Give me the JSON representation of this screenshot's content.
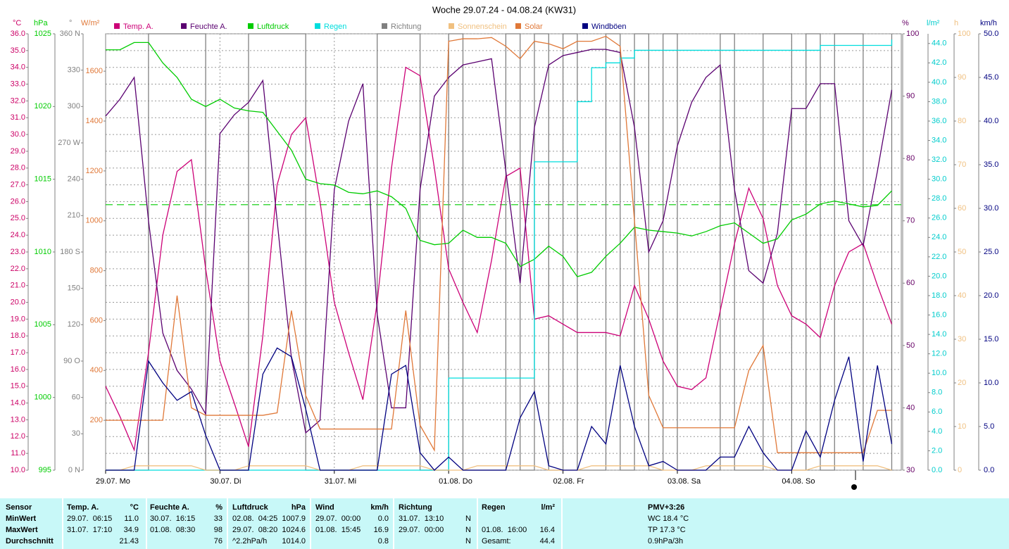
{
  "chart_data": {
    "type": "line",
    "title": "Woche 29.07.24 - 04.08.24 (KW31)",
    "xlim": [
      0,
      167
    ],
    "xticks": [
      {
        "value": 0,
        "label": "29.07. Mo"
      },
      {
        "value": 24,
        "label": "30.07. Di"
      },
      {
        "value": 48,
        "label": "31.07. Mi"
      },
      {
        "value": 72,
        "label": "01.08. Do"
      },
      {
        "value": 96,
        "label": "02.08. Fr"
      },
      {
        "value": 120,
        "label": "03.08. Sa"
      },
      {
        "value": 144,
        "label": "04.08. So"
      }
    ],
    "grid": true,
    "axes": {
      "temp": {
        "unit": "°C",
        "color": "#cc0066",
        "lim": [
          10,
          36
        ],
        "ticks": [
          {
            "value": 10,
            "label": "10.0"
          },
          {
            "value": 11,
            "label": "11.0"
          },
          {
            "value": 12,
            "label": "12.0"
          },
          {
            "value": 13,
            "label": "13.0"
          },
          {
            "value": 14,
            "label": "14.0"
          },
          {
            "value": 15,
            "label": "15.0"
          },
          {
            "value": 16,
            "label": "16.0"
          },
          {
            "value": 17,
            "label": "17.0"
          },
          {
            "value": 18,
            "label": "18.0"
          },
          {
            "value": 19,
            "label": "19.0"
          },
          {
            "value": 20,
            "label": "20.0"
          },
          {
            "value": 21,
            "label": "21.0"
          },
          {
            "value": 22,
            "label": "22.0"
          },
          {
            "value": 23,
            "label": "23.0"
          },
          {
            "value": 24,
            "label": "24.0"
          },
          {
            "value": 25,
            "label": "25.0"
          },
          {
            "value": 26,
            "label": "26.0"
          },
          {
            "value": 27,
            "label": "27.0"
          },
          {
            "value": 28,
            "label": "28.0"
          },
          {
            "value": 29,
            "label": "29.0"
          },
          {
            "value": 30,
            "label": "30.0"
          },
          {
            "value": 31,
            "label": "31.0"
          },
          {
            "value": 32,
            "label": "32.0"
          },
          {
            "value": 33,
            "label": "33.0"
          },
          {
            "value": 34,
            "label": "34.0"
          },
          {
            "value": 35,
            "label": "35.0"
          },
          {
            "value": 36,
            "label": "36.0"
          }
        ]
      },
      "pressure": {
        "unit": "hPa",
        "color": "#00cc00",
        "lim": [
          995,
          1025
        ],
        "ticks": [
          995,
          1000,
          1005,
          1010,
          1015,
          1020,
          1025
        ]
      },
      "direction": {
        "unit": "°",
        "color": "#808080",
        "lim": [
          0,
          360
        ],
        "ticks": [
          {
            "value": 0,
            "label": "0 N"
          },
          30,
          60,
          {
            "value": 90,
            "label": "90 O"
          },
          120,
          150,
          {
            "value": 180,
            "label": "180 S"
          },
          210,
          240,
          {
            "value": 270,
            "label": "270 W"
          },
          300,
          330,
          {
            "value": 360,
            "label": "360 N"
          }
        ]
      },
      "solar": {
        "unit": "W/m²",
        "color": "#e07838",
        "lim": [
          0,
          1750
        ],
        "ticks": [
          200,
          400,
          600,
          800,
          1000,
          1200,
          1400,
          1600
        ]
      },
      "humidity": {
        "unit": "%",
        "color": "#660066",
        "lim": [
          30,
          100
        ],
        "ticks": [
          30,
          40,
          50,
          60,
          70,
          80,
          90,
          100
        ]
      },
      "rain": {
        "unit": "l/m²",
        "color": "#00cccc",
        "lim": [
          0,
          45
        ],
        "ticks": [
          {
            "value": 0,
            "label": "0.0"
          },
          {
            "value": 2,
            "label": "2.0"
          },
          {
            "value": 4,
            "label": "4.0"
          },
          {
            "value": 6,
            "label": "6.0"
          },
          {
            "value": 8,
            "label": "8.0"
          },
          {
            "value": 10,
            "label": "10.0"
          },
          {
            "value": 12,
            "label": "12.0"
          },
          {
            "value": 14,
            "label": "14.0"
          },
          {
            "value": 16,
            "label": "16.0"
          },
          {
            "value": 18,
            "label": "18.0"
          },
          {
            "value": 20,
            "label": "20.0"
          },
          {
            "value": 22,
            "label": "22.0"
          },
          {
            "value": 24,
            "label": "24.0"
          },
          {
            "value": 26,
            "label": "26.0"
          },
          {
            "value": 28,
            "label": "28.0"
          },
          {
            "value": 30,
            "label": "30.0"
          },
          {
            "value": 32,
            "label": "32.0"
          },
          {
            "value": 34,
            "label": "34.0"
          },
          {
            "value": 36,
            "label": "36.0"
          },
          {
            "value": 38,
            "label": "38.0"
          },
          {
            "value": 40,
            "label": "40.0"
          },
          {
            "value": 42,
            "label": "42.0"
          },
          {
            "value": 44,
            "label": "44.0"
          }
        ]
      },
      "sunshine": {
        "unit": "h",
        "color": "#f0c080",
        "lim": [
          0,
          100
        ],
        "ticks": [
          0,
          10,
          20,
          30,
          40,
          50,
          60,
          70,
          80,
          90,
          100
        ]
      },
      "wind": {
        "unit": "km/h",
        "color": "#000080",
        "lim": [
          0,
          50
        ],
        "ticks": [
          {
            "value": 0,
            "label": "0.0"
          },
          {
            "value": 5,
            "label": "5.0"
          },
          {
            "value": 10,
            "label": "10.0"
          },
          {
            "value": 15,
            "label": "15.0"
          },
          {
            "value": 20,
            "label": "20.0"
          },
          {
            "value": 25,
            "label": "25.0"
          },
          {
            "value": 30,
            "label": "30.0"
          },
          {
            "value": 35,
            "label": "35.0"
          },
          {
            "value": 40,
            "label": "40.0"
          },
          {
            "value": 45,
            "label": "45.0"
          },
          {
            "value": 50,
            "label": "50.0"
          }
        ]
      }
    },
    "reference_line": {
      "value": 1013.25,
      "axis": "pressure"
    },
    "x": [
      0,
      3,
      6,
      9,
      12,
      15,
      18,
      21,
      24,
      27,
      30,
      33,
      36,
      39,
      42,
      45,
      48,
      51,
      54,
      57,
      60,
      63,
      66,
      69,
      72,
      75,
      78,
      81,
      84,
      87,
      90,
      93,
      96,
      99,
      102,
      105,
      108,
      111,
      114,
      117,
      120,
      123,
      126,
      129,
      132,
      135,
      138,
      141,
      144,
      147,
      150,
      153,
      156,
      159,
      162,
      165
    ],
    "series": [
      {
        "name": "Temp. A.",
        "color": "#cc0077",
        "axis": "temp",
        "values": [
          15,
          13.2,
          11.2,
          17,
          24,
          27.8,
          28.5,
          22,
          16.5,
          14,
          11.4,
          18,
          27,
          30,
          31,
          26,
          20,
          17,
          14.2,
          20,
          28,
          34,
          33.5,
          28,
          22,
          20,
          18.2,
          22.5,
          27.5,
          28,
          19,
          19.2,
          18.7,
          18.2,
          18.2,
          18.2,
          18,
          21,
          19,
          16.5,
          15,
          14.8,
          15.5,
          19.5,
          23.5,
          26.8,
          25,
          21,
          19.2,
          18.7,
          17.9,
          21,
          23,
          23.5,
          21,
          18.7
        ]
      },
      {
        "name": "Feuchte A.",
        "color": "#5a0070",
        "axis": "humidity",
        "values": [
          86.8,
          89.5,
          93,
          70,
          52,
          46,
          43,
          39,
          84,
          87,
          89,
          92.5,
          70,
          48,
          36,
          38,
          75,
          86,
          92,
          55,
          40,
          40,
          75,
          90,
          93,
          95,
          95.5,
          96,
          78,
          60,
          85,
          95,
          96.5,
          97,
          97.5,
          97.5,
          97,
          85,
          65,
          70,
          82,
          89,
          93,
          95,
          75,
          62,
          60,
          68,
          88,
          88,
          92,
          92,
          70,
          66,
          78,
          91
        ]
      },
      {
        "name": "Luftdruck",
        "color": "#00cc00",
        "axis": "pressure",
        "values": [
          1023.9,
          1023.9,
          1024.4,
          1024.4,
          1023,
          1022,
          1020.5,
          1020,
          1020.5,
          1019.9,
          1019.7,
          1019.6,
          1018.3,
          1017,
          1015,
          1014.7,
          1014.6,
          1014.1,
          1014,
          1014.2,
          1013.8,
          1013,
          1010.8,
          1010.5,
          1010.6,
          1011.5,
          1011,
          1011,
          1010.6,
          1009,
          1009.5,
          1010.4,
          1009.7,
          1008.3,
          1008.6,
          1009.7,
          1010.6,
          1011.7,
          1011.5,
          1011.4,
          1011.3,
          1011.1,
          1011.4,
          1011.8,
          1012,
          1011.3,
          1010.6,
          1010.9,
          1012.2,
          1012.6,
          1013.3,
          1013.5,
          1013.3,
          1013.1,
          1013.2,
          1014.2
        ]
      },
      {
        "name": "Regen",
        "color": "#00dddd",
        "axis": "rain",
        "draw": "step",
        "values": [
          0,
          0,
          0,
          0,
          0,
          0,
          0,
          0,
          0,
          0,
          0,
          0,
          0,
          0,
          0,
          0,
          0,
          0,
          0,
          0,
          0,
          0,
          0,
          0,
          9.5,
          9.5,
          9.5,
          9.5,
          9.5,
          9.5,
          31.8,
          31.8,
          31.8,
          38,
          41.5,
          42,
          42.5,
          43.3,
          43.3,
          43.3,
          43.3,
          43.3,
          43.3,
          43.3,
          43.3,
          43.3,
          43.3,
          43.3,
          43.3,
          43.3,
          43.8,
          43.8,
          43.8,
          43.8,
          43.8,
          44.4
        ]
      },
      {
        "name": "Richtung",
        "color": "#808080",
        "axis": "direction",
        "draw": "step",
        "values": [
          0,
          0,
          0,
          360,
          360,
          360,
          360,
          0,
          0,
          0,
          360,
          360,
          360,
          360,
          0,
          0,
          0,
          0,
          0,
          360,
          360,
          360,
          0,
          0,
          360,
          0,
          0,
          0,
          360,
          0,
          360,
          0,
          360,
          0,
          0,
          360,
          0,
          360,
          0,
          360,
          0,
          0,
          0,
          360,
          0,
          0,
          360,
          360,
          0,
          360,
          0,
          360,
          360,
          0,
          0,
          360
        ]
      },
      {
        "name": "Sonnenschein",
        "color": "#f0c080",
        "axis": "sunshine",
        "values": [
          0,
          0,
          1,
          1,
          1,
          1,
          1,
          0,
          0,
          0,
          1,
          1,
          1,
          1,
          1,
          0,
          0,
          0,
          1,
          1,
          1,
          1,
          1,
          0,
          0,
          0,
          1,
          1,
          1,
          1,
          1,
          0,
          0,
          0,
          1,
          1,
          1,
          1,
          1,
          0,
          0,
          0,
          1,
          1,
          1,
          1,
          1,
          0,
          0,
          0,
          1,
          1,
          1,
          1,
          1,
          0
        ]
      },
      {
        "name": "Solar",
        "color": "#e07838",
        "axis": "solar",
        "values": [
          200,
          200,
          200,
          200,
          200,
          700,
          250,
          220,
          220,
          220,
          220,
          220,
          230,
          640,
          300,
          165,
          165,
          165,
          165,
          165,
          165,
          640,
          180,
          80,
          1720,
          1730,
          1730,
          1735,
          1700,
          1650,
          1720,
          1710,
          1690,
          1720,
          1720,
          1740,
          1700,
          1000,
          300,
          170,
          170,
          170,
          170,
          170,
          170,
          400,
          500,
          70,
          70,
          70,
          70,
          70,
          70,
          70,
          240,
          240
        ]
      },
      {
        "name": "Windböen",
        "color": "#000080",
        "axis": "wind",
        "values": [
          0,
          0,
          0,
          12.5,
          10,
          8,
          9,
          4,
          0,
          0,
          0,
          11,
          14,
          13,
          7,
          0,
          0,
          0,
          0,
          0,
          11,
          12,
          2,
          0,
          1.5,
          0,
          0,
          0,
          0,
          6,
          9,
          0.5,
          0,
          0,
          5,
          3,
          12,
          5,
          0.5,
          1,
          0,
          0,
          0,
          1.5,
          1.5,
          5,
          2,
          0,
          0,
          4.5,
          1.5,
          8,
          13,
          1,
          12,
          3
        ]
      }
    ]
  },
  "stats": {
    "sensor_label": "Sensor",
    "row_labels": [
      "MinWert",
      "MaxWert",
      "Durchschnitt"
    ],
    "columns": [
      {
        "name": "Temp. A.",
        "unit": "°C",
        "cells": [
          {
            "time": "29.07.  06:15",
            "value": "11.0"
          },
          {
            "time": "31.07.  17:10",
            "value": "34.9"
          },
          {
            "value": "21.43"
          }
        ]
      },
      {
        "name": "Feuchte A.",
        "unit": "%",
        "cells": [
          {
            "time": "30.07.  16:15",
            "value": "33"
          },
          {
            "time": "01.08.  08:30",
            "value": "98"
          },
          {
            "value": "76"
          }
        ]
      },
      {
        "name": "Luftdruck",
        "unit": "hPa",
        "cells": [
          {
            "time": "02.08.  04:25",
            "value": "1007.9"
          },
          {
            "time": "29.07.  08:20",
            "value": "1024.6"
          },
          {
            "time": "^2.2hPa/h",
            "value": "1014.0"
          }
        ]
      },
      {
        "name": "Wind",
        "unit": "km/h",
        "cells": [
          {
            "time": "29.07.  00:00",
            "value": "0.0"
          },
          {
            "time": "01.08.  15:45",
            "value": "16.9"
          },
          {
            "value": "0.8"
          }
        ]
      },
      {
        "name": "Richtung",
        "cells": [
          {
            "time": "31.07.  13:10",
            "value": "N"
          },
          {
            "time": "29.07.  00:00",
            "value": "N"
          },
          {
            "value": "N"
          }
        ]
      },
      {
        "name": "Regen",
        "unit": "l/m²",
        "cells": [
          null,
          {
            "time": "01.08.  16:00",
            "value": "16.4"
          },
          {
            "time": "Gesamt:",
            "value": "44.4"
          }
        ]
      }
    ],
    "pmv": {
      "title": "PMV+3:26",
      "lines": [
        "WC 18.4 °C",
        "TP 17.3 °C",
        "0.9hPa/3h"
      ]
    }
  }
}
